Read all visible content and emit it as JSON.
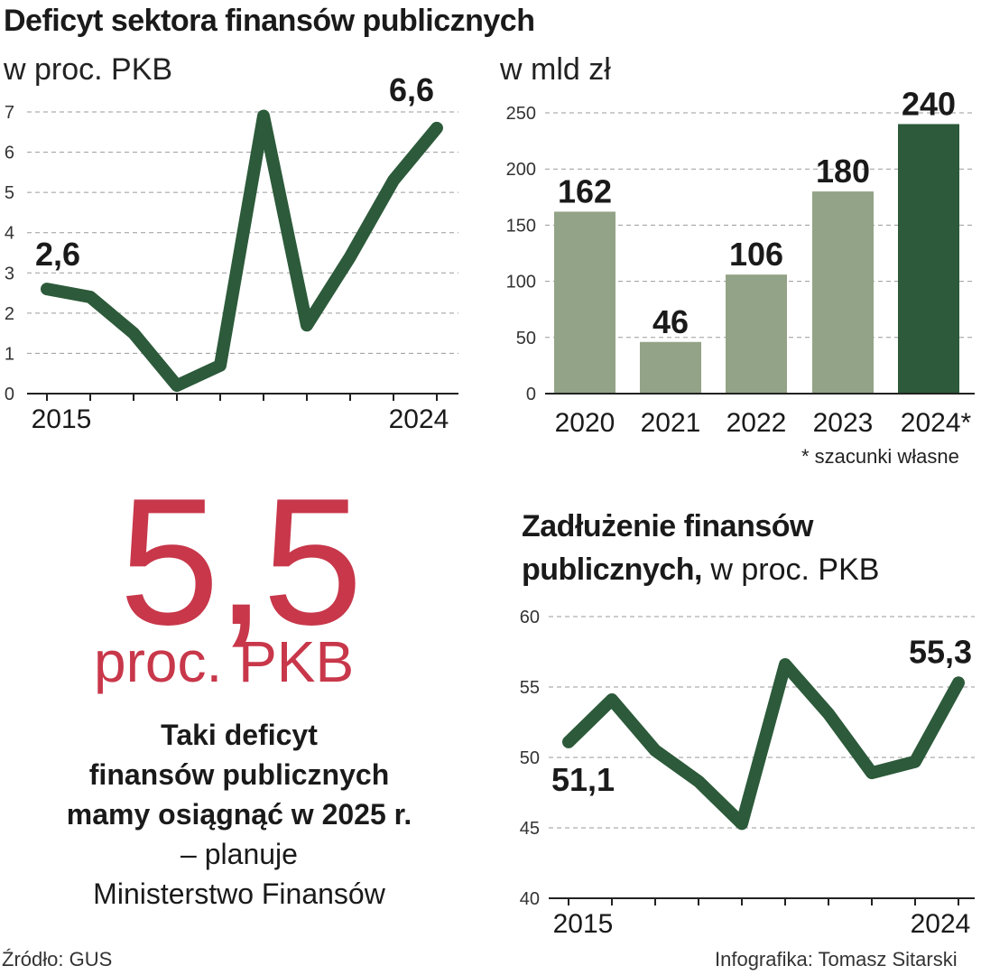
{
  "header": {
    "title": "Deficyt sektora finansów publicznych",
    "subtitle_left": "w proc. PKB",
    "subtitle_right": "w mld zł"
  },
  "highlight": {
    "value": "5,5",
    "unit": "proc. PKB",
    "line1": "Taki deficyt",
    "line2": "finansów publicznych",
    "line3": "mamy osiągnąć w 2025 r.",
    "line4": "– planuje",
    "line5": "Ministerstwo Finansów"
  },
  "debt": {
    "title_bold1": "Zadłużenie finansów",
    "title_bold2": "publicznych,",
    "title_rest": "w proc. PKB"
  },
  "footer": {
    "source": "Źródło: GUS",
    "credit": "Infografika: Tomasz Sitarski"
  },
  "colors": {
    "line": "#2c5a3a",
    "bar_light": "#93a387",
    "bar_dark": "#2c5a3a",
    "accent": "#c8374a"
  },
  "chart_data": [
    {
      "type": "line",
      "title": "Deficyt sektora finansów publicznych",
      "ylabel": "w proc. PKB",
      "x": [
        2015,
        2016,
        2017,
        2018,
        2019,
        2020,
        2021,
        2022,
        2023,
        2024
      ],
      "x_tick_labels": [
        "2015",
        "",
        "",
        "",
        "",
        "",
        "",
        "",
        "",
        "2024"
      ],
      "values": [
        2.6,
        2.4,
        1.5,
        0.2,
        0.7,
        6.9,
        1.7,
        3.4,
        5.3,
        6.6
      ],
      "ylim": [
        0,
        7
      ],
      "y_ticks": [
        "0",
        "1",
        "2",
        "3",
        "4",
        "5",
        "6",
        "7"
      ],
      "data_labels": [
        {
          "index": 0,
          "text": "2,6"
        },
        {
          "index": 9,
          "text": "6,6"
        }
      ],
      "grid": true
    },
    {
      "type": "bar",
      "title": "Deficyt sektora finansów publicznych",
      "ylabel": "w mld zł",
      "categories": [
        "2020",
        "2021",
        "2022",
        "2023",
        "2024*"
      ],
      "values": [
        162,
        46,
        106,
        180,
        240
      ],
      "labels": [
        "162",
        "46",
        "106",
        "180",
        "240"
      ],
      "highlight_index": 4,
      "ylim": [
        0,
        250
      ],
      "y_ticks": [
        "0",
        "50",
        "100",
        "150",
        "200",
        "250"
      ],
      "note": "* szacunki własne",
      "grid": true
    },
    {
      "type": "line",
      "title": "Zadłużenie finansów publicznych, w proc. PKB",
      "x": [
        2015,
        2016,
        2017,
        2018,
        2019,
        2020,
        2021,
        2022,
        2023,
        2024
      ],
      "x_tick_labels": [
        "2015",
        "",
        "",
        "",
        "",
        "",
        "",
        "",
        "",
        "2024"
      ],
      "values": [
        51.1,
        54.1,
        50.5,
        48.3,
        45.3,
        56.6,
        53.1,
        48.9,
        49.7,
        55.3
      ],
      "ylim": [
        40,
        60
      ],
      "y_ticks": [
        "40",
        "45",
        "50",
        "55",
        "60"
      ],
      "data_labels": [
        {
          "index": 0,
          "text": "51,1"
        },
        {
          "index": 9,
          "text": "55,3"
        }
      ],
      "grid": true
    }
  ]
}
